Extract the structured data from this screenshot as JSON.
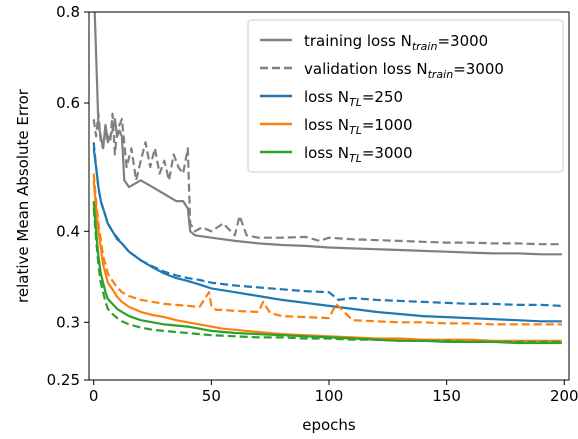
{
  "chart_data": {
    "type": "line",
    "title": "",
    "xlabel": "epochs",
    "ylabel": "relative Mean Absolute Error",
    "xlim": [
      -2,
      202
    ],
    "ylim": [
      0.25,
      0.8
    ],
    "yscale": "log",
    "xticks": [
      0,
      50,
      100,
      150,
      200
    ],
    "xtick_labels": [
      "0",
      "50",
      "100",
      "150",
      "200"
    ],
    "yticks": [
      0.25,
      0.3,
      0.4,
      0.6,
      0.8
    ],
    "ytick_labels": [
      "0.25",
      "0.3",
      "0.4",
      "0.6",
      "0.8"
    ],
    "grid": false,
    "legend_position": "top-right",
    "legend": [
      {
        "text": "training loss N",
        "sub": "train",
        "rest": "=3000",
        "color": "#808080",
        "dash": "solid"
      },
      {
        "text": "validation loss N",
        "sub": "train",
        "rest": "=3000",
        "color": "#808080",
        "dash": "dashed"
      },
      {
        "text": "loss N",
        "sub": "TL",
        "rest": "=250",
        "color": "#1f77b4",
        "dash": "solid"
      },
      {
        "text": "loss N",
        "sub": "TL",
        "rest": "=1000",
        "color": "#ff7f0e",
        "dash": "solid"
      },
      {
        "text": "loss N",
        "sub": "TL",
        "rest": "=3000",
        "color": "#2ca02c",
        "dash": "solid"
      }
    ],
    "series": [
      {
        "color": "#808080",
        "dash": "solid",
        "x": [
          0,
          1,
          2,
          3,
          4,
          5,
          6,
          8,
          9,
          10,
          11,
          12,
          13,
          15,
          20,
          25,
          30,
          35,
          38,
          40,
          41,
          43,
          50,
          60,
          70,
          80,
          90,
          100,
          110,
          120,
          130,
          140,
          150,
          160,
          170,
          180,
          190,
          199
        ],
        "y": [
          0.88,
          0.7,
          0.56,
          0.54,
          0.52,
          0.56,
          0.53,
          0.55,
          0.57,
          0.54,
          0.55,
          0.54,
          0.47,
          0.46,
          0.47,
          0.46,
          0.45,
          0.44,
          0.44,
          0.43,
          0.4,
          0.395,
          0.392,
          0.388,
          0.385,
          0.383,
          0.382,
          0.38,
          0.379,
          0.378,
          0.377,
          0.376,
          0.375,
          0.374,
          0.373,
          0.373,
          0.372,
          0.372
        ]
      },
      {
        "color": "#808080",
        "dash": "dashed",
        "x": [
          0,
          1,
          2,
          3,
          4,
          5,
          6,
          7,
          8,
          9,
          10,
          12,
          14,
          16,
          18,
          20,
          22,
          24,
          26,
          28,
          30,
          32,
          34,
          36,
          38,
          40,
          41,
          43,
          46,
          50,
          55,
          60,
          62,
          65,
          70,
          80,
          90,
          96,
          100,
          110,
          120,
          130,
          140,
          150,
          160,
          170,
          180,
          190,
          199
        ],
        "y": [
          0.57,
          0.54,
          0.58,
          0.53,
          0.52,
          0.55,
          0.54,
          0.53,
          0.58,
          0.51,
          0.55,
          0.57,
          0.49,
          0.52,
          0.47,
          0.5,
          0.53,
          0.49,
          0.52,
          0.48,
          0.5,
          0.47,
          0.51,
          0.49,
          0.48,
          0.52,
          0.41,
          0.4,
          0.405,
          0.4,
          0.41,
          0.395,
          0.42,
          0.395,
          0.392,
          0.392,
          0.393,
          0.388,
          0.392,
          0.39,
          0.389,
          0.388,
          0.387,
          0.386,
          0.386,
          0.385,
          0.385,
          0.384,
          0.384
        ]
      },
      {
        "color": "#1f77b4",
        "dash": "solid",
        "x": [
          0,
          1,
          2,
          3,
          4,
          5,
          6,
          8,
          10,
          12,
          15,
          20,
          25,
          30,
          35,
          40,
          45,
          50,
          60,
          70,
          80,
          90,
          100,
          110,
          120,
          130,
          140,
          150,
          160,
          170,
          180,
          190,
          199
        ],
        "y": [
          0.52,
          0.49,
          0.46,
          0.44,
          0.43,
          0.42,
          0.41,
          0.4,
          0.39,
          0.385,
          0.375,
          0.365,
          0.357,
          0.35,
          0.345,
          0.342,
          0.338,
          0.334,
          0.33,
          0.326,
          0.322,
          0.319,
          0.316,
          0.313,
          0.31,
          0.308,
          0.306,
          0.305,
          0.304,
          0.303,
          0.302,
          0.301,
          0.301
        ]
      },
      {
        "color": "#1f77b4",
        "dash": "dashed",
        "x": [
          0,
          1,
          2,
          3,
          4,
          5,
          6,
          8,
          10,
          12,
          15,
          20,
          25,
          30,
          35,
          40,
          45,
          50,
          60,
          70,
          80,
          90,
          100,
          104,
          110,
          120,
          130,
          140,
          150,
          160,
          170,
          180,
          190,
          199
        ],
        "y": [
          0.53,
          0.49,
          0.46,
          0.44,
          0.43,
          0.42,
          0.41,
          0.4,
          0.392,
          0.385,
          0.375,
          0.365,
          0.358,
          0.352,
          0.348,
          0.345,
          0.343,
          0.34,
          0.337,
          0.335,
          0.333,
          0.331,
          0.33,
          0.322,
          0.324,
          0.322,
          0.321,
          0.32,
          0.319,
          0.318,
          0.318,
          0.317,
          0.317,
          0.316
        ]
      },
      {
        "color": "#ff7f0e",
        "dash": "solid",
        "x": [
          0,
          1,
          2,
          3,
          4,
          5,
          6,
          8,
          10,
          12,
          15,
          20,
          25,
          30,
          35,
          40,
          45,
          50,
          55,
          60,
          70,
          80,
          90,
          100,
          110,
          120,
          130,
          140,
          150,
          160,
          170,
          180,
          190,
          199
        ],
        "y": [
          0.47,
          0.43,
          0.4,
          0.38,
          0.36,
          0.35,
          0.34,
          0.333,
          0.325,
          0.32,
          0.315,
          0.31,
          0.307,
          0.305,
          0.302,
          0.3,
          0.298,
          0.296,
          0.294,
          0.293,
          0.291,
          0.289,
          0.288,
          0.287,
          0.286,
          0.285,
          0.285,
          0.284,
          0.284,
          0.284,
          0.283,
          0.283,
          0.283,
          0.283
        ]
      },
      {
        "color": "#ff7f0e",
        "dash": "dashed",
        "x": [
          0,
          1,
          2,
          3,
          4,
          5,
          6,
          8,
          10,
          12,
          15,
          20,
          25,
          30,
          35,
          40,
          45,
          49,
          50,
          52,
          55,
          60,
          70,
          72,
          75,
          80,
          90,
          100,
          103,
          110,
          120,
          130,
          140,
          150,
          160,
          170,
          180,
          190,
          199
        ],
        "y": [
          0.48,
          0.44,
          0.41,
          0.39,
          0.37,
          0.36,
          0.35,
          0.342,
          0.335,
          0.33,
          0.326,
          0.322,
          0.32,
          0.318,
          0.317,
          0.316,
          0.315,
          0.33,
          0.316,
          0.312,
          0.312,
          0.311,
          0.31,
          0.32,
          0.309,
          0.306,
          0.305,
          0.304,
          0.318,
          0.302,
          0.301,
          0.3,
          0.3,
          0.299,
          0.299,
          0.298,
          0.298,
          0.298,
          0.298
        ]
      },
      {
        "color": "#2ca02c",
        "dash": "solid",
        "x": [
          0,
          1,
          2,
          3,
          4,
          5,
          6,
          8,
          10,
          12,
          15,
          20,
          25,
          30,
          35,
          40,
          45,
          50,
          60,
          70,
          80,
          90,
          100,
          110,
          120,
          130,
          140,
          150,
          160,
          170,
          180,
          190,
          199
        ],
        "y": [
          0.44,
          0.4,
          0.37,
          0.35,
          0.34,
          0.33,
          0.323,
          0.318,
          0.313,
          0.31,
          0.306,
          0.302,
          0.3,
          0.298,
          0.297,
          0.296,
          0.294,
          0.292,
          0.29,
          0.289,
          0.288,
          0.287,
          0.286,
          0.285,
          0.284,
          0.283,
          0.283,
          0.282,
          0.282,
          0.282,
          0.281,
          0.281,
          0.281
        ]
      },
      {
        "color": "#2ca02c",
        "dash": "dashed",
        "x": [
          0,
          1,
          2,
          3,
          4,
          5,
          6,
          8,
          10,
          12,
          15,
          20,
          25,
          30,
          35,
          40,
          45,
          50,
          60,
          70,
          80,
          90,
          100,
          110,
          120,
          130,
          140,
          150,
          160,
          170,
          180,
          190,
          199
        ],
        "y": [
          0.43,
          0.39,
          0.36,
          0.34,
          0.33,
          0.32,
          0.313,
          0.308,
          0.304,
          0.301,
          0.298,
          0.295,
          0.293,
          0.292,
          0.291,
          0.29,
          0.289,
          0.288,
          0.287,
          0.286,
          0.286,
          0.285,
          0.285,
          0.284,
          0.284,
          0.283,
          0.283,
          0.283,
          0.282,
          0.282,
          0.282,
          0.282,
          0.282
        ]
      }
    ]
  }
}
